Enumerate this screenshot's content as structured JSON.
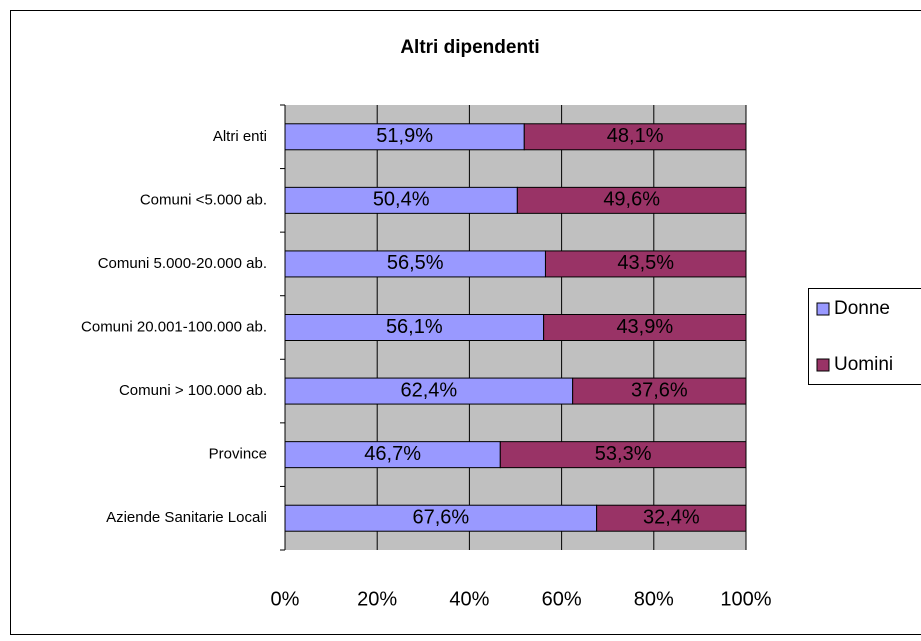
{
  "chart_data": {
    "type": "bar",
    "orientation": "horizontal",
    "stacked": true,
    "title": "Altri dipendenti",
    "categories": [
      "Altri enti",
      "Comuni <5.000 ab.",
      "Comuni 5.000-20.000 ab.",
      "Comuni 20.001-100.000 ab.",
      "Comuni > 100.000 ab.",
      "Province",
      "Aziende Sanitarie Locali"
    ],
    "series": [
      {
        "name": "Donne",
        "color": "#9999ff",
        "values": [
          51.9,
          50.4,
          56.5,
          56.1,
          62.4,
          46.7,
          67.6
        ],
        "value_labels": [
          "51,9%",
          "50,4%",
          "56,5%",
          "56,1%",
          "62,4%",
          "46,7%",
          "67,6%"
        ]
      },
      {
        "name": "Uomini",
        "color": "#993366",
        "values": [
          48.1,
          49.6,
          43.5,
          43.9,
          37.6,
          53.3,
          32.4
        ],
        "value_labels": [
          "48,1%",
          "49,6%",
          "43,5%",
          "43,9%",
          "37,6%",
          "53,3%",
          "32,4%"
        ]
      }
    ],
    "xlim": [
      0,
      100
    ],
    "xticks": [
      {
        "value": 0,
        "label": "0%"
      },
      {
        "value": 20,
        "label": "20%"
      },
      {
        "value": 40,
        "label": "40%"
      },
      {
        "value": 60,
        "label": "60%"
      },
      {
        "value": 80,
        "label": "80%"
      },
      {
        "value": 100,
        "label": "100%"
      }
    ],
    "grid": true,
    "legend": "right"
  }
}
